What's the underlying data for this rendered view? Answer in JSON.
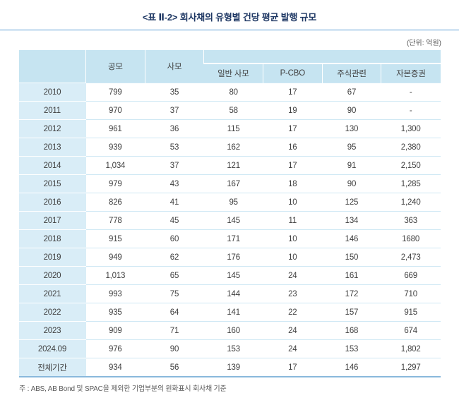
{
  "title": "<표 Ⅱ-2> 회사채의 유형별 건당 평균 발행 규모",
  "unit_label": "(단위: 억원)",
  "colors": {
    "title_text": "#1f3864",
    "header_bg": "#c6e4f1",
    "row_label_bg": "#d9edf7",
    "rule_blue": "#5b9bd5"
  },
  "table": {
    "headers": {
      "public": "공모",
      "private": "사모",
      "sub": [
        "일반 사모",
        "P-CBO",
        "주식관련",
        "자본증권"
      ]
    },
    "rows": [
      {
        "label": "2010",
        "values": [
          "799",
          "35",
          "80",
          "17",
          "67",
          "-"
        ]
      },
      {
        "label": "2011",
        "values": [
          "970",
          "37",
          "58",
          "19",
          "90",
          "-"
        ]
      },
      {
        "label": "2012",
        "values": [
          "961",
          "36",
          "115",
          "17",
          "130",
          "1,300"
        ]
      },
      {
        "label": "2013",
        "values": [
          "939",
          "53",
          "162",
          "16",
          "95",
          "2,380"
        ]
      },
      {
        "label": "2014",
        "values": [
          "1,034",
          "37",
          "121",
          "17",
          "91",
          "2,150"
        ]
      },
      {
        "label": "2015",
        "values": [
          "979",
          "43",
          "167",
          "18",
          "90",
          "1,285"
        ]
      },
      {
        "label": "2016",
        "values": [
          "826",
          "41",
          "95",
          "10",
          "125",
          "1,240"
        ]
      },
      {
        "label": "2017",
        "values": [
          "778",
          "45",
          "145",
          "11",
          "134",
          "363"
        ]
      },
      {
        "label": "2018",
        "values": [
          "915",
          "60",
          "171",
          "10",
          "146",
          "1680"
        ]
      },
      {
        "label": "2019",
        "values": [
          "949",
          "62",
          "176",
          "10",
          "150",
          "2,473"
        ]
      },
      {
        "label": "2020",
        "values": [
          "1,013",
          "65",
          "145",
          "24",
          "161",
          "669"
        ]
      },
      {
        "label": "2021",
        "values": [
          "993",
          "75",
          "144",
          "23",
          "172",
          "710"
        ]
      },
      {
        "label": "2022",
        "values": [
          "935",
          "64",
          "141",
          "22",
          "157",
          "915"
        ]
      },
      {
        "label": "2023",
        "values": [
          "909",
          "71",
          "160",
          "24",
          "168",
          "674"
        ]
      },
      {
        "label": "2024.09",
        "values": [
          "976",
          "90",
          "153",
          "24",
          "153",
          "1,802"
        ]
      },
      {
        "label": "전체기간",
        "values": [
          "934",
          "56",
          "139",
          "17",
          "146",
          "1,297"
        ]
      }
    ]
  },
  "footnote": "주 : ABS, AB Bond 및 SPAC을 제외한 기업부분의 원화표시 회사채 기준"
}
